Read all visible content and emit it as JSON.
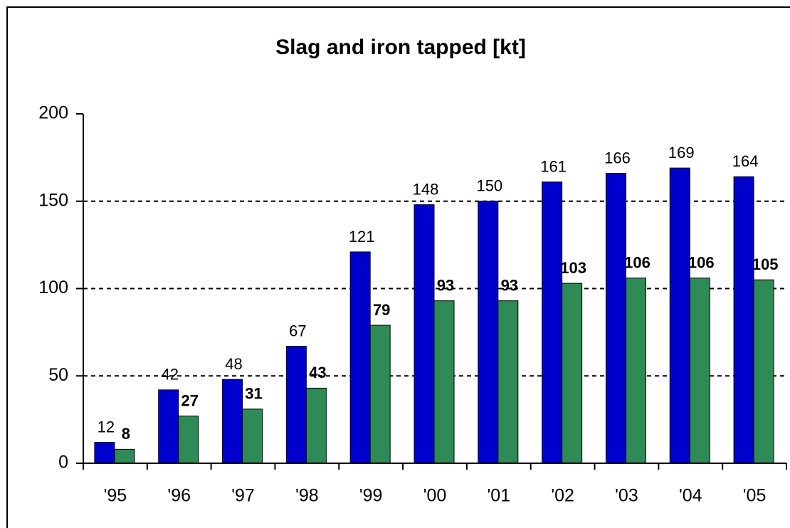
{
  "chart_data": {
    "type": "bar",
    "title": "Slag and iron tapped  [kt]",
    "categories": [
      "'95",
      "'96",
      "'97",
      "'98",
      "'99",
      "'00",
      "'01",
      "'02",
      "'03",
      "'04",
      "'05"
    ],
    "series": [
      {
        "color": "#0000cc",
        "values": [
          12,
          42,
          48,
          67,
          121,
          148,
          150,
          161,
          166,
          169,
          164
        ]
      },
      {
        "color": "#2e8b57",
        "values": [
          8,
          27,
          31,
          43,
          79,
          93,
          93,
          103,
          106,
          106,
          105
        ]
      }
    ],
    "ylim": [
      0,
      200
    ],
    "yticks": [
      0,
      50,
      100,
      150,
      200
    ],
    "grid": true
  }
}
